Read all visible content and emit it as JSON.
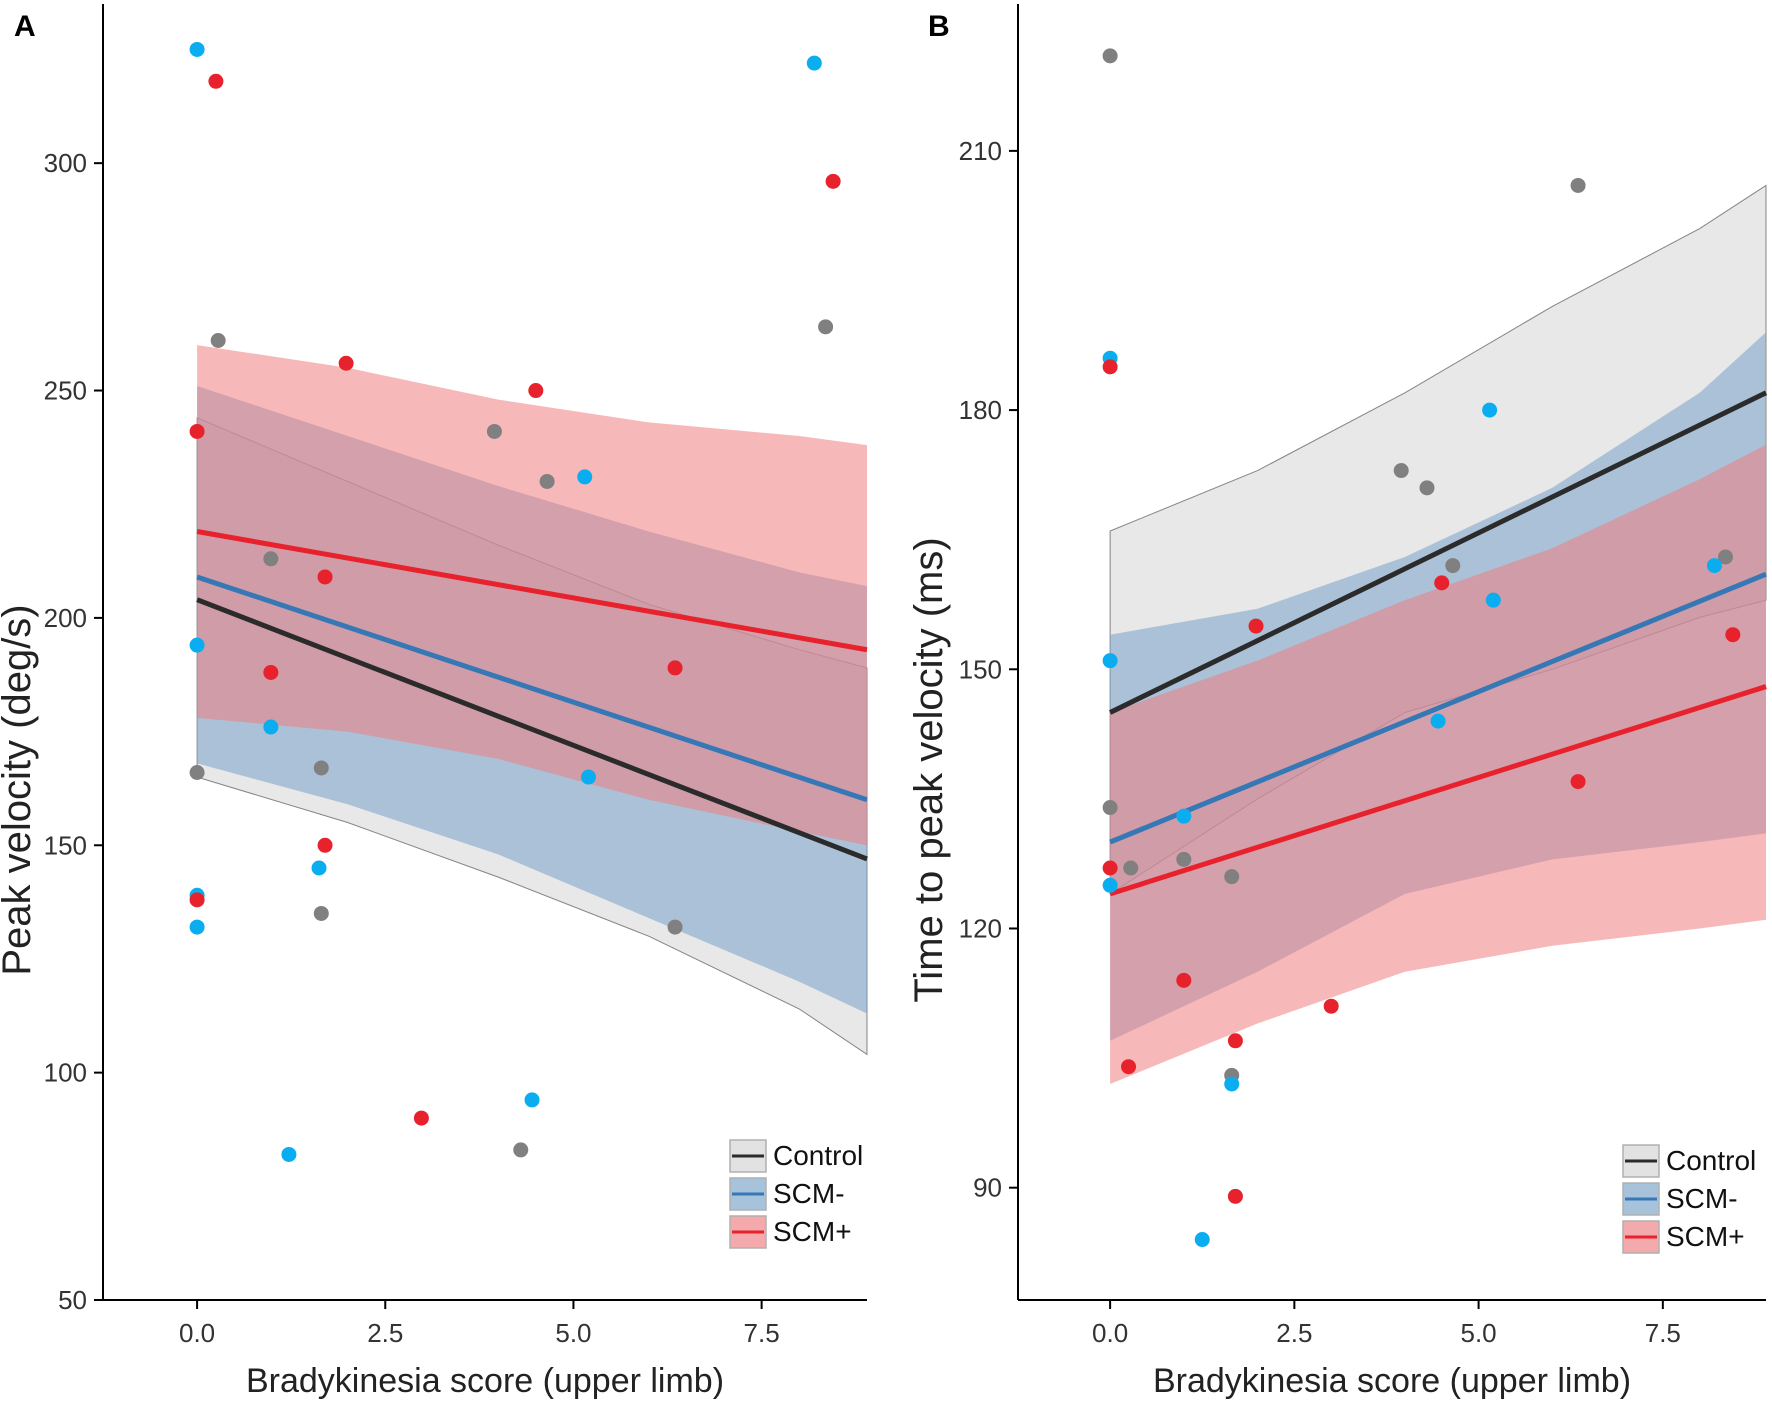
{
  "legend_labels": [
    "Control",
    "SCM-",
    "SCM+"
  ],
  "colors": {
    "control_line": "#2b2b2b",
    "control_band": "#c8c8c8",
    "scm_minus_line": "#3677b6",
    "scm_minus_band": "#7ea6cc",
    "scm_minus_point": "#0aaef0",
    "scm_plus_line": "#e8222c",
    "scm_plus_band": "#ee7d80",
    "scm_plus_point": "#e8222c",
    "control_point": "#808080"
  },
  "chart_data": [
    {
      "type": "scatter",
      "panel_label": "A",
      "title": "",
      "xlabel": "Bradykinesia score (upper limb)",
      "ylabel": "Peak velocity (deg/s)",
      "xlim": [
        -1.25,
        8.9
      ],
      "ylim": [
        50,
        335
      ],
      "xticks": [
        0,
        2.5,
        5,
        7.5
      ],
      "xtick_labels": [
        "0.0",
        "2.5",
        "5.0",
        "7.5"
      ],
      "yticks": [
        50,
        100,
        150,
        200,
        250,
        300
      ],
      "ytick_labels": [
        "50",
        "100",
        "150",
        "200",
        "250",
        "300"
      ],
      "legend": "bottom-right",
      "series": [
        {
          "name": "Control",
          "points": [
            [
              0,
              166
            ],
            [
              0.28,
              261
            ],
            [
              0.98,
              213
            ],
            [
              1.65,
              167
            ],
            [
              1.65,
              135
            ],
            [
              3.95,
              241
            ],
            [
              4.65,
              230
            ],
            [
              6.35,
              132
            ],
            [
              8.35,
              264
            ],
            [
              4.3,
              83
            ]
          ],
          "fit": {
            "x": [
              0,
              8.9
            ],
            "y": [
              204,
              147
            ]
          },
          "band": {
            "x": [
              0,
              2,
              4,
              6,
              8,
              8.9
            ],
            "upper": [
              244,
              230,
              216,
              203,
              193,
              189
            ],
            "lower": [
              165,
              155,
              143,
              130,
              114,
              104
            ]
          }
        },
        {
          "name": "SCM-",
          "points": [
            [
              0,
              325
            ],
            [
              0,
              194
            ],
            [
              0,
              139
            ],
            [
              0,
              132
            ],
            [
              0.98,
              176
            ],
            [
              1.22,
              82
            ],
            [
              1.62,
              145
            ],
            [
              4.45,
              94
            ],
            [
              5.15,
              231
            ],
            [
              5.2,
              165
            ],
            [
              8.2,
              322
            ]
          ],
          "fit": {
            "x": [
              0,
              8.9
            ],
            "y": [
              209,
              160
            ]
          },
          "band": {
            "x": [
              0,
              2,
              4,
              6,
              8,
              8.9
            ],
            "upper": [
              251,
              240,
              229,
              219,
              210,
              207
            ],
            "lower": [
              168,
              159,
              148,
              134,
              120,
              113
            ]
          }
        },
        {
          "name": "SCM+",
          "points": [
            [
              0.25,
              318
            ],
            [
              0,
              241
            ],
            [
              0,
              138
            ],
            [
              0.98,
              188
            ],
            [
              1.7,
              209
            ],
            [
              1.7,
              150
            ],
            [
              1.98,
              256
            ],
            [
              2.98,
              90
            ],
            [
              4.5,
              250
            ],
            [
              6.35,
              189
            ],
            [
              8.45,
              296
            ]
          ],
          "fit": {
            "x": [
              0,
              8.9
            ],
            "y": [
              219,
              193
            ]
          },
          "band": {
            "x": [
              0,
              2,
              4,
              6,
              8,
              8.9
            ],
            "upper": [
              260,
              255,
              248,
              243,
              240,
              238
            ],
            "lower": [
              178,
              175,
              169,
              160,
              153,
              150
            ]
          }
        }
      ]
    },
    {
      "type": "scatter",
      "panel_label": "B",
      "title": "",
      "xlabel": "Bradykinesia score (upper limb)",
      "ylabel": "Time to peak velocity (ms)",
      "xlim": [
        -1.25,
        8.9
      ],
      "ylim": [
        77,
        227
      ],
      "xticks": [
        0,
        2.5,
        5,
        7.5
      ],
      "xtick_labels": [
        "0.0",
        "2.5",
        "5.0",
        "7.5"
      ],
      "yticks": [
        90,
        120,
        150,
        180,
        210
      ],
      "ytick_labels": [
        "90",
        "120",
        "150",
        "180",
        "210"
      ],
      "legend": "bottom-right",
      "series": [
        {
          "name": "Control",
          "points": [
            [
              0,
              221
            ],
            [
              0,
              134
            ],
            [
              0.28,
              127
            ],
            [
              1.0,
              128
            ],
            [
              1.65,
              126
            ],
            [
              1.65,
              103
            ],
            [
              3.95,
              173
            ],
            [
              4.3,
              171
            ],
            [
              4.65,
              162
            ],
            [
              6.35,
              206
            ],
            [
              8.35,
              163
            ]
          ],
          "fit": {
            "x": [
              0,
              8.9
            ],
            "y": [
              145,
              182
            ]
          },
          "band": {
            "x": [
              0,
              2,
              4,
              6,
              8,
              8.9
            ],
            "upper": [
              166,
              173,
              182,
              192,
              201,
              206
            ],
            "lower": [
              124,
              135,
              145,
              150,
              156,
              158
            ]
          }
        },
        {
          "name": "SCM-",
          "points": [
            [
              0,
              186
            ],
            [
              0,
              151
            ],
            [
              0,
              125
            ],
            [
              1.0,
              133
            ],
            [
              1.25,
              84
            ],
            [
              1.65,
              102
            ],
            [
              4.45,
              144
            ],
            [
              5.15,
              180
            ],
            [
              5.2,
              158
            ],
            [
              8.2,
              162
            ]
          ],
          "fit": {
            "x": [
              0,
              8.9
            ],
            "y": [
              130,
              161
            ]
          },
          "band": {
            "x": [
              0,
              2,
              4,
              6,
              8,
              8.9
            ],
            "upper": [
              154,
              157,
              163,
              171,
              182,
              189
            ],
            "lower": [
              107,
              115,
              124,
              128,
              130,
              131
            ]
          }
        },
        {
          "name": "SCM+",
          "points": [
            [
              0,
              185
            ],
            [
              0,
              127
            ],
            [
              0.25,
              104
            ],
            [
              1.0,
              114
            ],
            [
              1.7,
              107
            ],
            [
              1.7,
              89
            ],
            [
              1.98,
              155
            ],
            [
              3.0,
              111
            ],
            [
              4.5,
              160
            ],
            [
              6.35,
              137
            ],
            [
              8.45,
              154
            ]
          ],
          "fit": {
            "x": [
              0,
              8.9
            ],
            "y": [
              124,
              148
            ]
          },
          "band": {
            "x": [
              0,
              2,
              4,
              6,
              8,
              8.9
            ],
            "upper": [
              145,
              151,
              158,
              164,
              172,
              176
            ],
            "lower": [
              102,
              109,
              115,
              118,
              120,
              121
            ]
          }
        }
      ]
    }
  ]
}
